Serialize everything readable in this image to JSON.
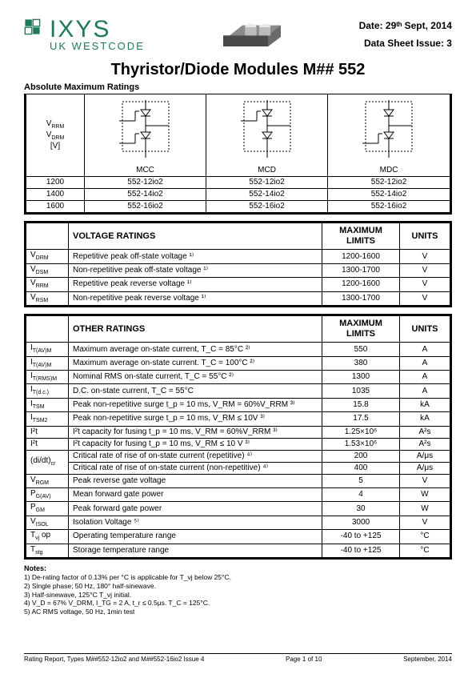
{
  "header": {
    "brand_main": "IXYS",
    "brand_sub": "UK WESTCODE",
    "date_line": "Date: 29ᵗʰ Sept, 2014",
    "issue_line": "Data Sheet Issue: 3"
  },
  "title": "Thyristor/Diode Modules M## 552",
  "section_abs_max": "Absolute Maximum Ratings",
  "variant_table": {
    "col1_symbols": [
      "V_RRM",
      "V_DRM",
      "[V]"
    ],
    "variants": [
      "MCC",
      "MCD",
      "MDC"
    ],
    "rows": [
      {
        "v": "1200",
        "vals": [
          "552-12io2",
          "552-12io2",
          "552-12io2"
        ]
      },
      {
        "v": "1400",
        "vals": [
          "552-14io2",
          "552-14io2",
          "552-14io2"
        ]
      },
      {
        "v": "1600",
        "vals": [
          "552-16io2",
          "552-16io2",
          "552-16io2"
        ]
      }
    ]
  },
  "voltage_ratings": {
    "header": [
      "",
      "VOLTAGE RATINGS",
      "MAXIMUM LIMITS",
      "UNITS"
    ],
    "rows": [
      {
        "sym": "V_DRM",
        "desc": "Repetitive peak off-state voltage ¹⁾",
        "lim": "1200-1600",
        "unit": "V"
      },
      {
        "sym": "V_DSM",
        "desc": "Non-repetitive peak off-state voltage ¹⁾",
        "lim": "1300-1700",
        "unit": "V"
      },
      {
        "sym": "V_RRM",
        "desc": "Repetitive peak reverse voltage ¹⁾",
        "lim": "1200-1600",
        "unit": "V"
      },
      {
        "sym": "V_RSM",
        "desc": "Non-repetitive peak reverse voltage ¹⁾",
        "lim": "1300-1700",
        "unit": "V"
      }
    ]
  },
  "other_ratings": {
    "header": [
      "",
      "OTHER RATINGS",
      "MAXIMUM LIMITS",
      "UNITS"
    ],
    "rows": [
      {
        "sym": "I_T(AV)M",
        "desc": "Maximum average on-state current, T_C = 85°C ²⁾",
        "lim": "550",
        "unit": "A"
      },
      {
        "sym": "I_T(AV)M",
        "desc": "Maximum average on-state current. T_C = 100°C ²⁾",
        "lim": "380",
        "unit": "A"
      },
      {
        "sym": "I_T(RMS)M",
        "desc": "Nominal RMS on-state current, T_C = 55°C ²⁾",
        "lim": "1300",
        "unit": "A"
      },
      {
        "sym": "I_T(d.c.)",
        "desc": "D.C. on-state current, T_C = 55°C",
        "lim": "1035",
        "unit": "A"
      },
      {
        "sym": "I_TSM",
        "desc": "Peak non-repetitive surge t_p = 10 ms, V_RM = 60%V_RRM ³⁾",
        "lim": "15.8",
        "unit": "kA"
      },
      {
        "sym": "I_TSM2",
        "desc": "Peak non-repetitive surge t_p = 10 ms, V_RM ≤ 10V ³⁾",
        "lim": "17.5",
        "unit": "kA"
      },
      {
        "sym": "I²t",
        "desc": "I²t capacity for fusing t_p = 10 ms, V_RM = 60%V_RRM ³⁾",
        "lim": "1.25×10⁶",
        "unit": "A²s"
      },
      {
        "sym": "I²t",
        "desc": "I²t capacity for fusing t_p = 10 ms, V_RM ≤ 10 V ³⁾",
        "lim": "1.53×10⁶",
        "unit": "A²s"
      },
      {
        "sym": "(di/dt)_cr",
        "desc": "Critical rate of rise of on-state current (repetitive) ⁴⁾",
        "lim": "200",
        "unit": "A/μs",
        "rowspan": 2
      },
      {
        "sym": "",
        "desc": "Critical rate of rise of on-state current (non-repetitive) ⁴⁾",
        "lim": "400",
        "unit": "A/μs",
        "merged_sym": true
      },
      {
        "sym": "V_RGM",
        "desc": "Peak reverse gate voltage",
        "lim": "5",
        "unit": "V"
      },
      {
        "sym": "P_G(AV)",
        "desc": "Mean forward gate power",
        "lim": "4",
        "unit": "W"
      },
      {
        "sym": "P_GM",
        "desc": "Peak forward gate power",
        "lim": "30",
        "unit": "W"
      },
      {
        "sym": "V_ISOL",
        "desc": "Isolation Voltage ⁵⁾",
        "lim": "3000",
        "unit": "V"
      },
      {
        "sym": "T_vj op",
        "desc": "Operating temperature range",
        "lim": "-40 to +125",
        "unit": "°C"
      },
      {
        "sym": "T_stg",
        "desc": "Storage temperature range",
        "lim": "-40 to +125",
        "unit": "°C"
      }
    ]
  },
  "notes": {
    "header": "Notes:",
    "items": [
      "1)   De-rating factor of 0.13% per °C is applicable for T_vj below 25°C.",
      "2)   Single phase; 50 Hz, 180° half-sinewave.",
      "3)   Half-sinewave, 125°C T_vj initial.",
      "4)   V_D = 67% V_DRM, I_TG = 2 A, t_r ≤ 0.5μs. T_C = 125°C.",
      "5)   AC RMS voltage, 50 Hz, 1min test"
    ]
  },
  "footer": {
    "left": "Rating Report, Types M##552-12io2 and M##552-16io2 Issue 4",
    "center": "Page 1 of 10",
    "right": "September, 2014"
  }
}
